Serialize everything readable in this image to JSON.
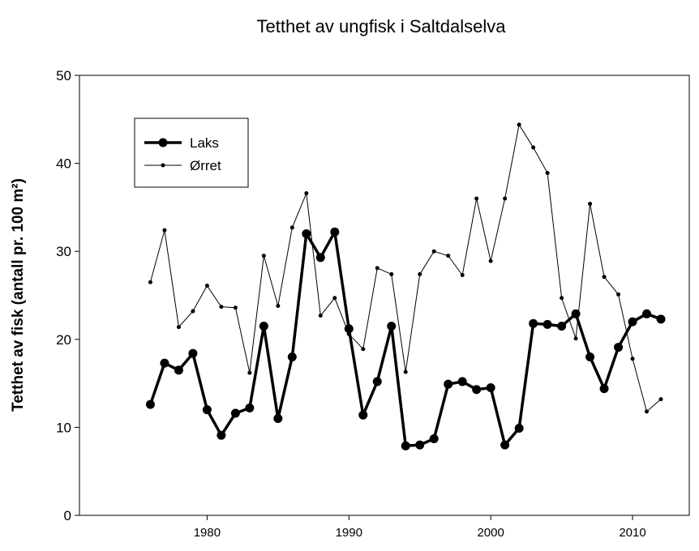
{
  "chart_data": {
    "type": "line",
    "title": "Tetthet av ungfisk i Saltdalselva",
    "y_label": "Tetthet av fisk (antall pr. 100 m²)",
    "x": [
      1976,
      1977,
      1978,
      1979,
      1980,
      1981,
      1982,
      1983,
      1984,
      1985,
      1986,
      1987,
      1988,
      1989,
      1990,
      1991,
      1992,
      1993,
      1994,
      1995,
      1996,
      1997,
      1998,
      1999,
      2000,
      2001,
      2002,
      2003,
      2004,
      2005,
      2006,
      2007,
      2008,
      2009,
      2010,
      2011,
      2012
    ],
    "series": [
      {
        "name": "Laks",
        "color": "#000000",
        "line_width": 3.5,
        "marker_radius": 5.5,
        "values": [
          12.6,
          17.3,
          16.5,
          18.4,
          12.0,
          9.1,
          11.6,
          12.2,
          21.5,
          11.0,
          18.0,
          32.0,
          29.3,
          32.2,
          21.2,
          11.4,
          15.2,
          21.5,
          7.9,
          8.0,
          8.7,
          14.9,
          15.2,
          14.3,
          14.5,
          8.0,
          9.9,
          21.8,
          21.7,
          21.5,
          22.9,
          18.0,
          14.4,
          19.1,
          22.0,
          22.9,
          22.3
        ]
      },
      {
        "name": "Ørret",
        "color": "#000000",
        "line_width": 1,
        "marker_radius": 2.5,
        "values": [
          26.5,
          32.4,
          21.4,
          23.2,
          26.1,
          23.7,
          23.6,
          16.2,
          29.5,
          23.8,
          32.7,
          36.6,
          22.7,
          24.7,
          20.6,
          18.9,
          28.1,
          27.4,
          16.3,
          27.4,
          30.0,
          29.5,
          27.3,
          36.0,
          28.9,
          36.0,
          44.4,
          41.8,
          38.9,
          24.7,
          20.1,
          35.4,
          27.1,
          25.1,
          17.8,
          11.8,
          13.2
        ]
      }
    ],
    "xlim": [
      1971,
      2014
    ],
    "xticks": [
      1980,
      1990,
      2000,
      2010
    ],
    "ylim": [
      0,
      50
    ],
    "yticks": [
      0,
      10,
      20,
      30,
      40,
      50
    ],
    "legend": "upper left"
  }
}
